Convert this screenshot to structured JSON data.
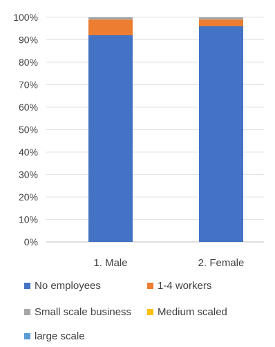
{
  "chart_data": {
    "type": "bar",
    "stacked": true,
    "percent_stacked": true,
    "categories": [
      "1. Male",
      "2. Female"
    ],
    "series": [
      {
        "name": "No employees",
        "color": "#4472C4",
        "values": [
          92,
          96
        ]
      },
      {
        "name": "1-4 workers",
        "color": "#ED7D31",
        "values": [
          7,
          3
        ]
      },
      {
        "name": "Small scale business",
        "color": "#A5A5A5",
        "values": [
          1,
          1
        ]
      },
      {
        "name": "Medium scaled",
        "color": "#FFC000",
        "values": [
          0,
          0
        ]
      },
      {
        "name": "large scale",
        "color": "#5B9BD5",
        "values": [
          0,
          0
        ]
      }
    ],
    "ylim": [
      0,
      100
    ],
    "yticks": [
      "0%",
      "10%",
      "20%",
      "30%",
      "40%",
      "50%",
      "60%",
      "70%",
      "80%",
      "90%",
      "100%"
    ],
    "grid": true,
    "legend_position": "bottom"
  }
}
